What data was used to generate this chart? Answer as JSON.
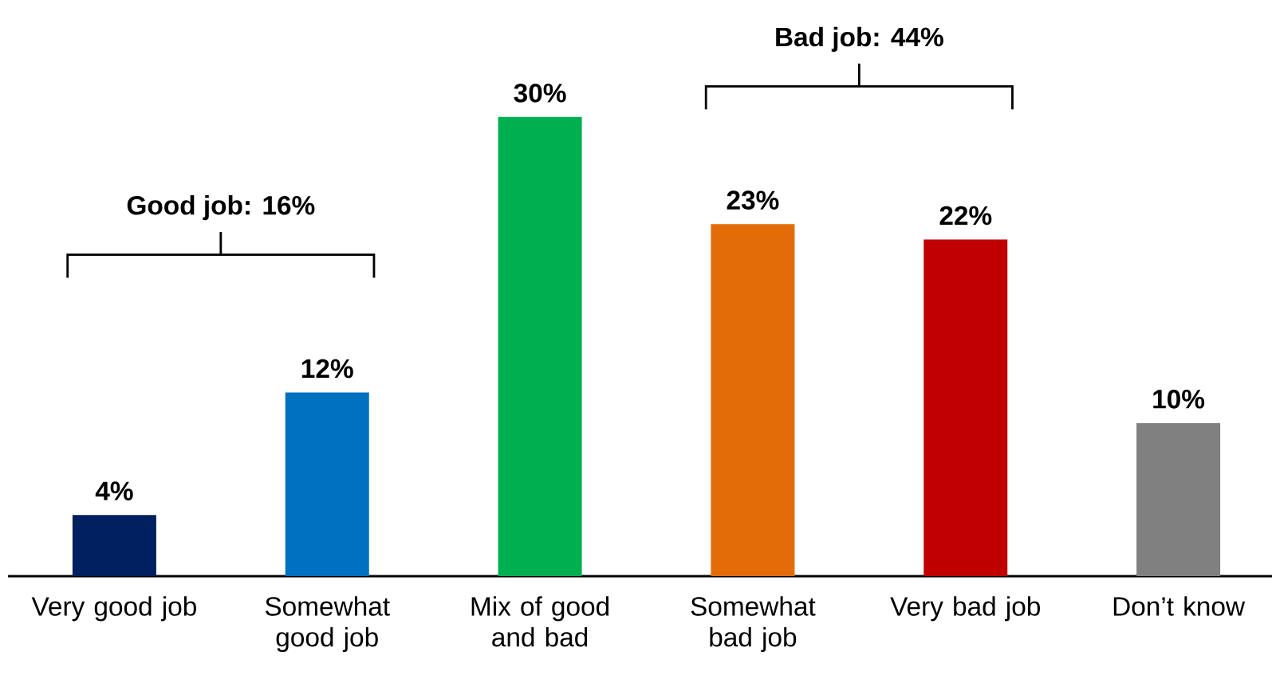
{
  "chart_data": {
    "type": "bar",
    "categories": [
      "Very good job",
      "Somewhat good job",
      "Mix of good and bad",
      "Somewhat bad job",
      "Very bad job",
      "Don’t know"
    ],
    "values": [
      4,
      12,
      30,
      23,
      22,
      10
    ],
    "colors": [
      "#002060",
      "#0070c0",
      "#00b050",
      "#e36c09",
      "#c00000",
      "#808080"
    ],
    "value_labels": [
      "4%",
      "12%",
      "30%",
      "23%",
      "22%",
      "10%"
    ],
    "annotations": [
      "Good job: 16%",
      "Bad job: 44%"
    ]
  }
}
